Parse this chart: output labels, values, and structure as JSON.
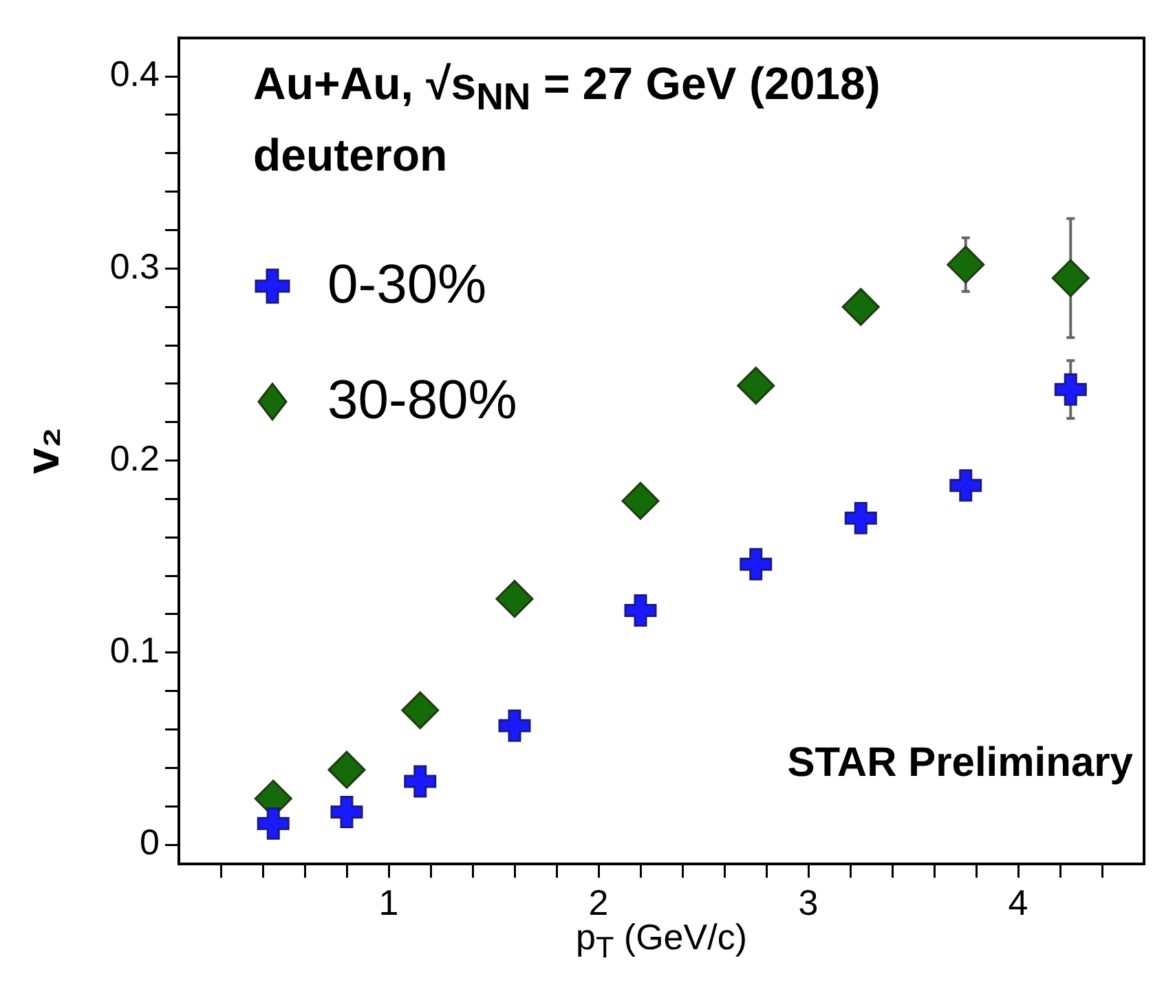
{
  "chart_data": {
    "type": "scatter",
    "title": "Au+Au, √s$_{NN}$ = 27 GeV (2018)",
    "subtitle": "deuteron",
    "xlabel": "p$_{T}$ (GeV/c)",
    "ylabel": "v₂",
    "annotations": [
      "STAR Preliminary"
    ],
    "xlim": [
      0,
      4.6
    ],
    "xticks": [
      {
        "value": 0.2,
        "label": null
      },
      {
        "value": 0.4,
        "label": null
      },
      {
        "value": 0.6,
        "label": null
      },
      {
        "value": 0.8,
        "label": null
      },
      1,
      {
        "value": 1.2,
        "label": null
      },
      {
        "value": 1.4,
        "label": null
      },
      {
        "value": 1.6,
        "label": null
      },
      {
        "value": 1.8,
        "label": null
      },
      2,
      {
        "value": 2.2,
        "label": null
      },
      {
        "value": 2.4,
        "label": null
      },
      {
        "value": 2.6,
        "label": null
      },
      {
        "value": 2.8,
        "label": null
      },
      3,
      {
        "value": 3.2,
        "label": null
      },
      {
        "value": 3.4,
        "label": null
      },
      {
        "value": 3.6,
        "label": null
      },
      {
        "value": 3.8,
        "label": null
      },
      4,
      {
        "value": 4.2,
        "label": null
      },
      {
        "value": 4.4,
        "label": null
      }
    ],
    "ylim": [
      -0.01,
      0.42
    ],
    "yticks": [
      0,
      {
        "value": 0.02,
        "label": null
      },
      {
        "value": 0.04,
        "label": null
      },
      {
        "value": 0.06,
        "label": null
      },
      {
        "value": 0.08,
        "label": null
      },
      0.1,
      {
        "value": 0.12,
        "label": null
      },
      {
        "value": 0.14,
        "label": null
      },
      {
        "value": 0.16,
        "label": null
      },
      {
        "value": 0.18,
        "label": null
      },
      0.2,
      {
        "value": 0.22,
        "label": null
      },
      {
        "value": 0.24,
        "label": null
      },
      {
        "value": 0.26,
        "label": null
      },
      {
        "value": 0.28,
        "label": null
      },
      0.3,
      {
        "value": 0.32,
        "label": null
      },
      {
        "value": 0.34,
        "label": null
      },
      {
        "value": 0.36,
        "label": null
      },
      {
        "value": 0.38,
        "label": null
      },
      0.4
    ],
    "grid": false,
    "legend": "top left",
    "series": [
      {
        "name": "0-30%",
        "color": "#1a1aff",
        "marker": "cross",
        "x": [
          0.45,
          0.8,
          1.15,
          1.6,
          2.2,
          2.75,
          3.25,
          3.75,
          4.25
        ],
        "values": [
          0.011,
          0.017,
          0.033,
          0.062,
          0.122,
          0.146,
          0.17,
          0.187,
          0.237
        ],
        "errors": [
          null,
          null,
          null,
          null,
          null,
          null,
          null,
          null,
          0.015
        ]
      },
      {
        "name": "30-80%",
        "color": "#156b0a",
        "marker": "diamond",
        "x": [
          0.45,
          0.8,
          1.15,
          1.6,
          2.2,
          2.75,
          3.25,
          3.75,
          4.25
        ],
        "values": [
          0.024,
          0.039,
          0.07,
          0.128,
          0.179,
          0.239,
          0.28,
          0.302,
          0.295
        ],
        "errors": [
          null,
          null,
          null,
          null,
          null,
          null,
          null,
          0.014,
          0.031
        ]
      }
    ]
  }
}
